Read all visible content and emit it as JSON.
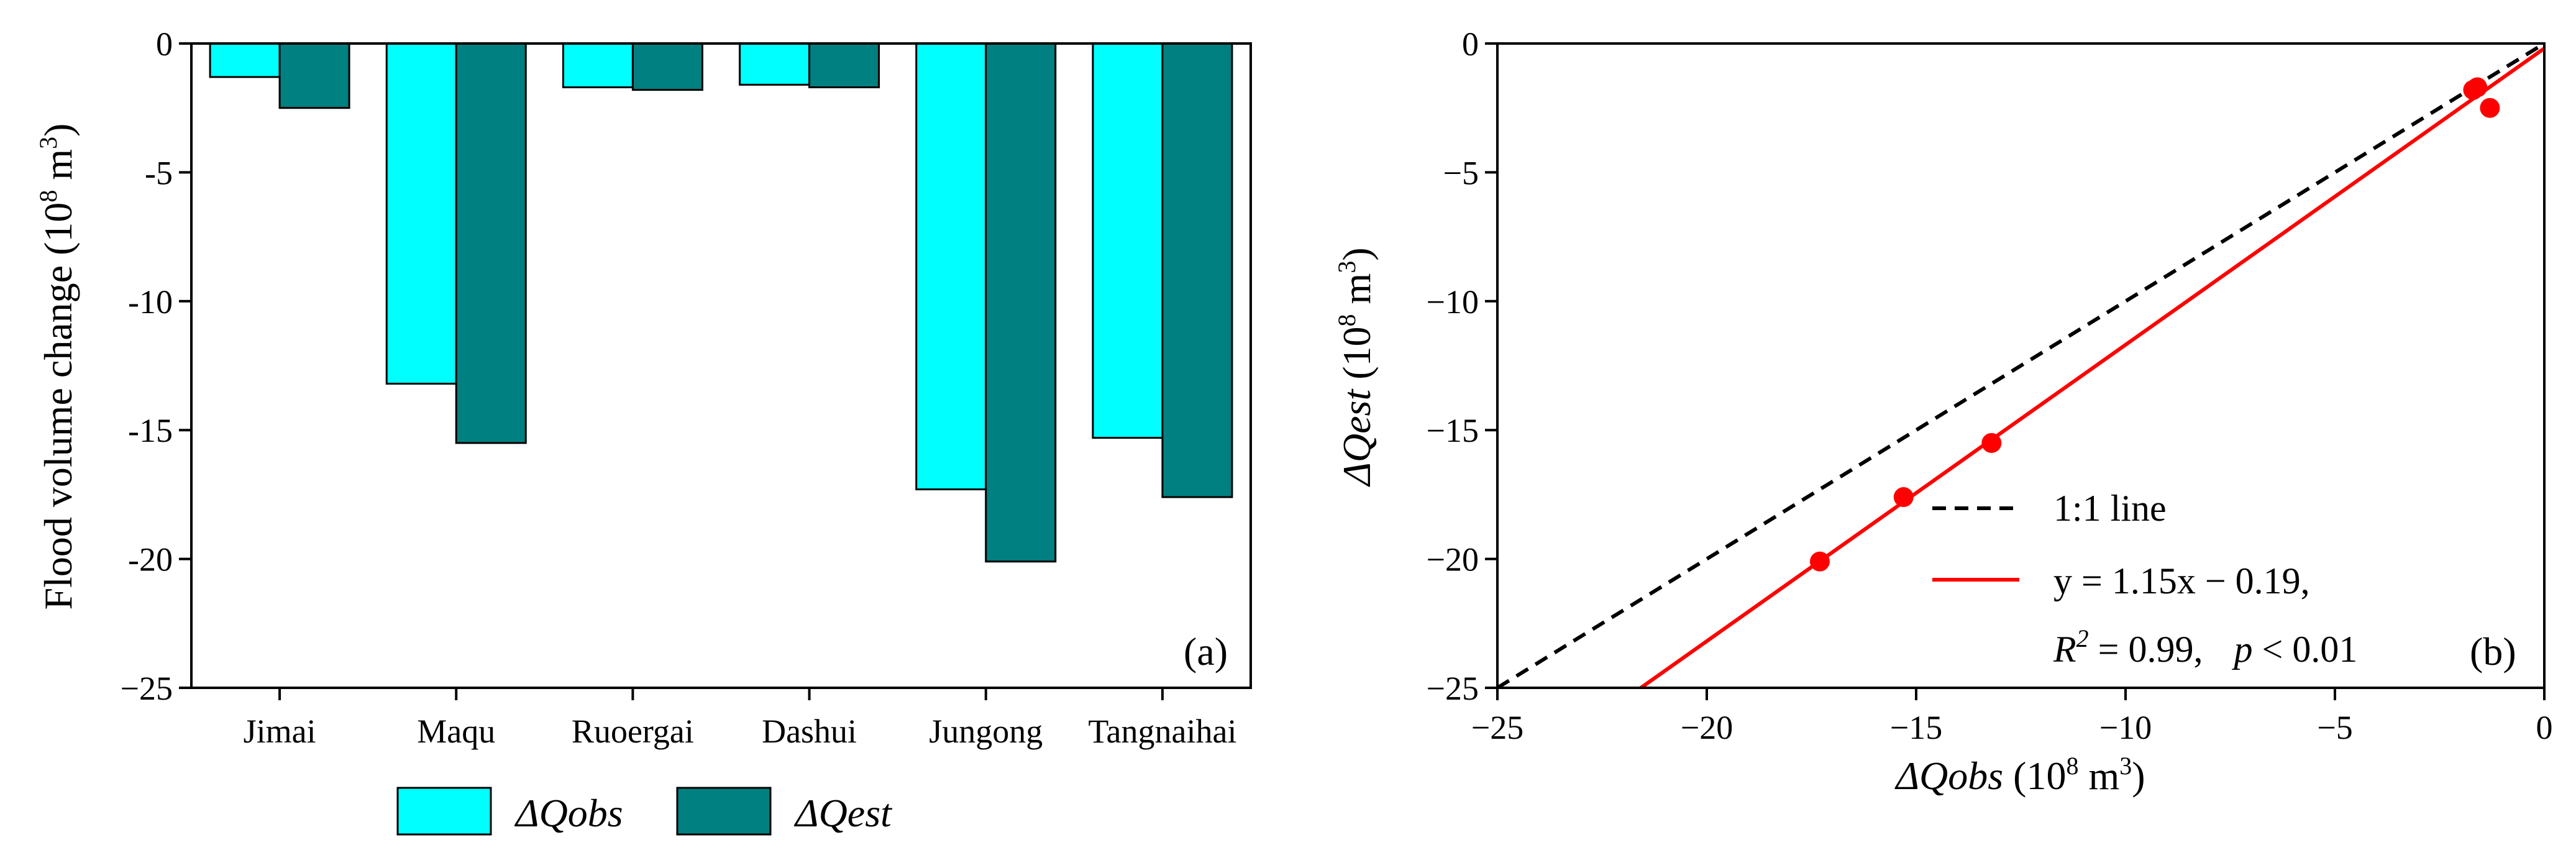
{
  "chart_data": [
    {
      "type": "bar",
      "panel_label": "(a)",
      "ylabel_main": "Flood volume change (10",
      "ylabel_exp": "8",
      "ylabel_tail": " m",
      "ylabel_exp2": "3",
      "ylabel_close": ")",
      "categories": [
        "Jimai",
        "Maqu",
        "Ruoergai",
        "Dashui",
        "Jungong",
        "Tangnaihai"
      ],
      "series": [
        {
          "name": "ΔQobs",
          "color": "#00FFFF",
          "values": [
            -1.3,
            -13.2,
            -1.7,
            -1.6,
            -17.3,
            -15.3
          ]
        },
        {
          "name": "ΔQest",
          "color": "#008080",
          "values": [
            -2.5,
            -15.5,
            -1.8,
            -1.7,
            -20.1,
            -17.6
          ]
        }
      ],
      "ylim": [
        -25,
        0
      ],
      "yticks": [
        0,
        -5,
        -10,
        -15,
        -20,
        -25
      ],
      "ytick_labels": [
        "0",
        "-5",
        "-10",
        "-15",
        "-20",
        "−25"
      ],
      "legend_position": "bottom"
    },
    {
      "type": "scatter",
      "panel_label": "(b)",
      "xlabel_var": "ΔQobs",
      "xlabel_unit": " (10",
      "xlabel_exp": "8",
      "xlabel_unit2": " m",
      "xlabel_exp2": "3",
      "xlabel_close": ")",
      "ylabel_var": "ΔQest",
      "ylabel_unit": " (10",
      "ylabel_exp": "8",
      "ylabel_unit2": " m",
      "ylabel_exp2": "3",
      "ylabel_close": ")",
      "xlim": [
        -25,
        0
      ],
      "ylim": [
        -25,
        0
      ],
      "xticks": [
        -25,
        -20,
        -15,
        -10,
        -5,
        0
      ],
      "xtick_labels": [
        "−25",
        "−20",
        "−15",
        "−10",
        "−5",
        "0"
      ],
      "yticks": [
        0,
        -5,
        -10,
        -15,
        -20,
        -25
      ],
      "ytick_labels": [
        "0",
        "−5",
        "−10",
        "−15",
        "−20",
        "−25"
      ],
      "points": [
        {
          "x": -1.3,
          "y": -2.5
        },
        {
          "x": -13.2,
          "y": -15.5
        },
        {
          "x": -1.7,
          "y": -1.8
        },
        {
          "x": -1.6,
          "y": -1.7
        },
        {
          "x": -17.3,
          "y": -20.1
        },
        {
          "x": -15.3,
          "y": -17.6
        }
      ],
      "point_color": "#FF0000",
      "one_to_one": {
        "label": "1:1 line",
        "color": "#000000"
      },
      "fit": {
        "slope": 1.15,
        "intercept": -0.19,
        "color": "#FF0000",
        "equation_label": "y = 1.15x − 0.19,",
        "r2_var": "R",
        "r2_exp": "2",
        "r2_value": " = 0.99,",
        "p_var": "p",
        "p_value": " < 0.01"
      },
      "legend_position": "lower-right"
    }
  ]
}
